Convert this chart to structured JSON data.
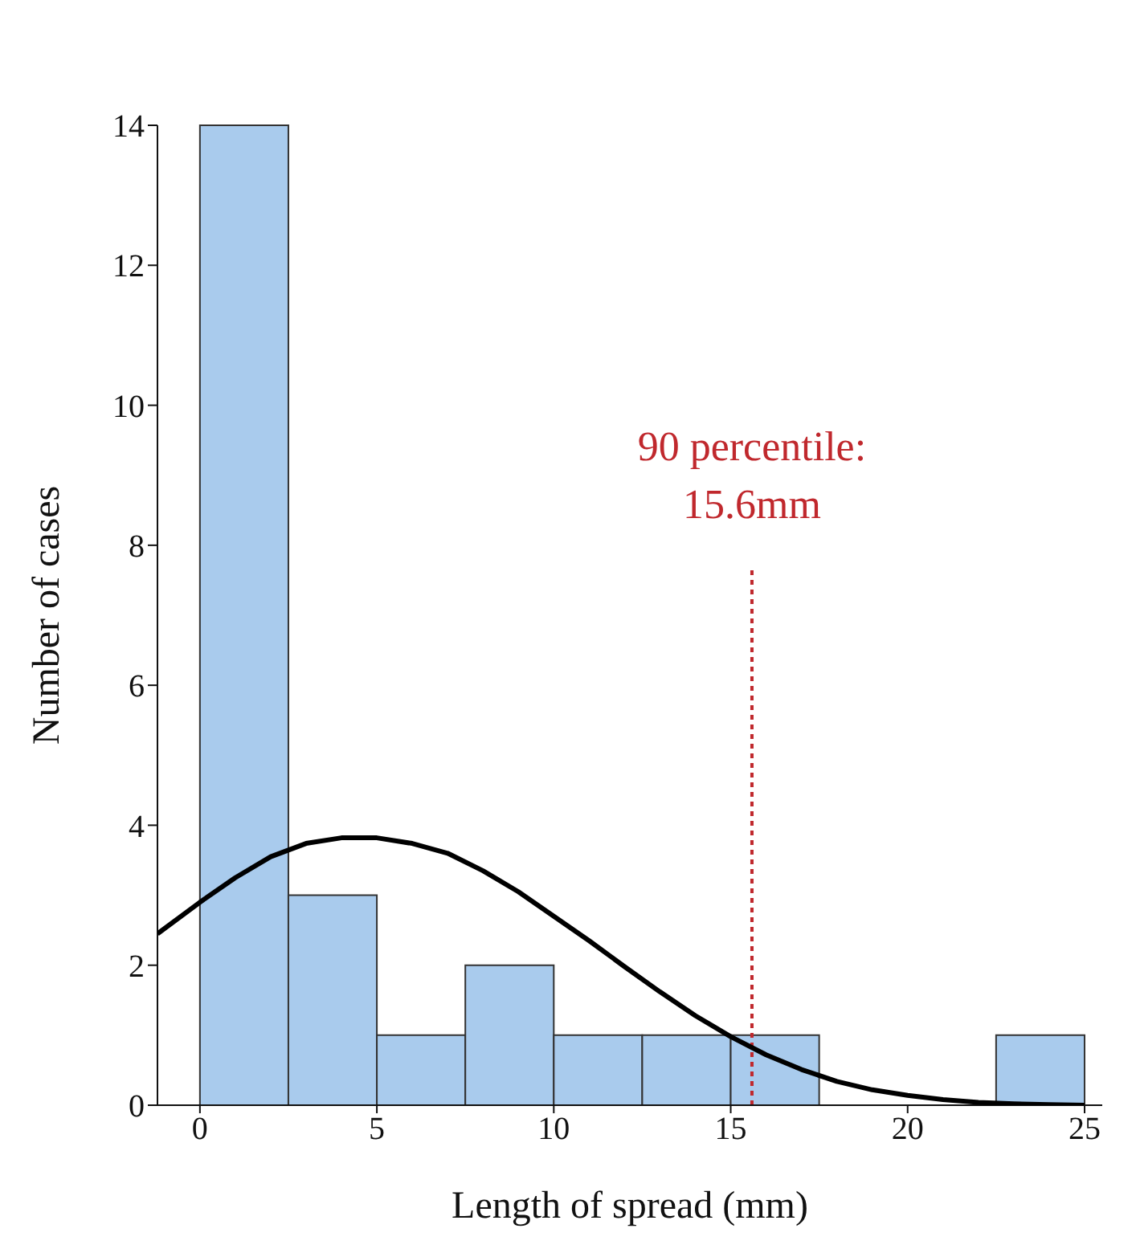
{
  "chart_data": {
    "type": "histogram",
    "xlabel": "Length of spread (mm)",
    "ylabel": "Number of cases",
    "bins": [
      0,
      2.5,
      5,
      7.5,
      10,
      12.5,
      15,
      17.5,
      20,
      22.5,
      25
    ],
    "values": [
      14,
      3,
      1,
      2,
      1,
      1,
      1,
      0,
      0,
      1
    ],
    "color": "#a9cbed",
    "series": [
      {
        "type": "line",
        "color": "#000000",
        "x": [
          -1.2,
          0,
          1,
          2,
          3,
          4,
          5,
          6,
          7,
          8,
          9,
          10,
          11,
          12,
          13,
          14,
          15,
          16,
          17,
          18,
          19,
          20,
          21,
          22,
          23,
          24,
          25
        ],
        "values": [
          2.45,
          2.9,
          3.25,
          3.55,
          3.74,
          3.82,
          3.82,
          3.74,
          3.6,
          3.35,
          3.05,
          2.7,
          2.35,
          1.98,
          1.62,
          1.28,
          0.98,
          0.72,
          0.51,
          0.34,
          0.22,
          0.14,
          0.08,
          0.04,
          0.02,
          0.01,
          0
        ]
      }
    ],
    "ref_lines": [
      {
        "axis": "x",
        "value": 15.6,
        "label": "90 percentile:\n15.6mm",
        "color": "#c0282d",
        "line_style": "dotted"
      }
    ],
    "xlim": [
      -1.2,
      25.5
    ],
    "xticks": [
      0,
      5,
      10,
      15,
      20,
      25
    ],
    "ylim": [
      0,
      14
    ],
    "yticks": [
      0,
      2,
      4,
      6,
      8,
      10,
      12,
      14
    ]
  }
}
